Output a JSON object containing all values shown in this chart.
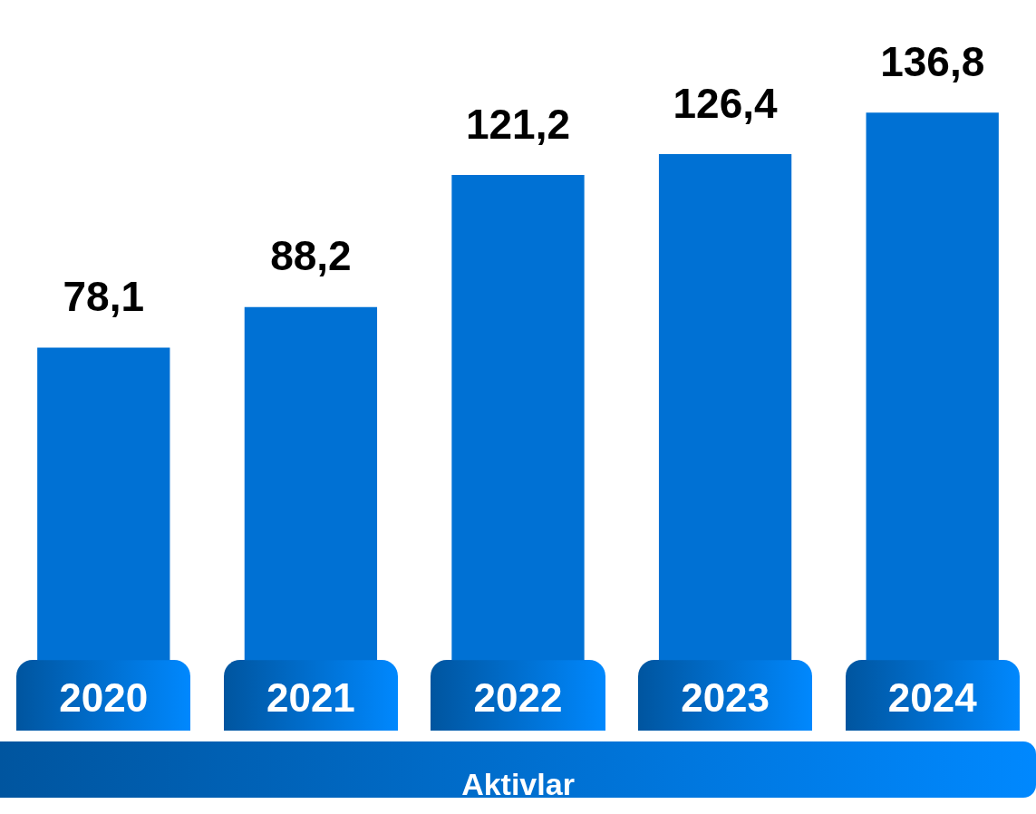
{
  "chart_data": {
    "type": "bar",
    "xlabel": "Aktivlar",
    "categories": [
      "2020",
      "2021",
      "2022",
      "2023",
      "2024"
    ],
    "values": [
      78.1,
      88.2,
      121.2,
      126.4,
      136.8
    ],
    "value_labels": [
      "78,1",
      "88,2",
      "121,2",
      "126,4",
      "136,8"
    ],
    "color": "#0071d4",
    "tick_labels": "x",
    "grid": false,
    "legend": false
  }
}
